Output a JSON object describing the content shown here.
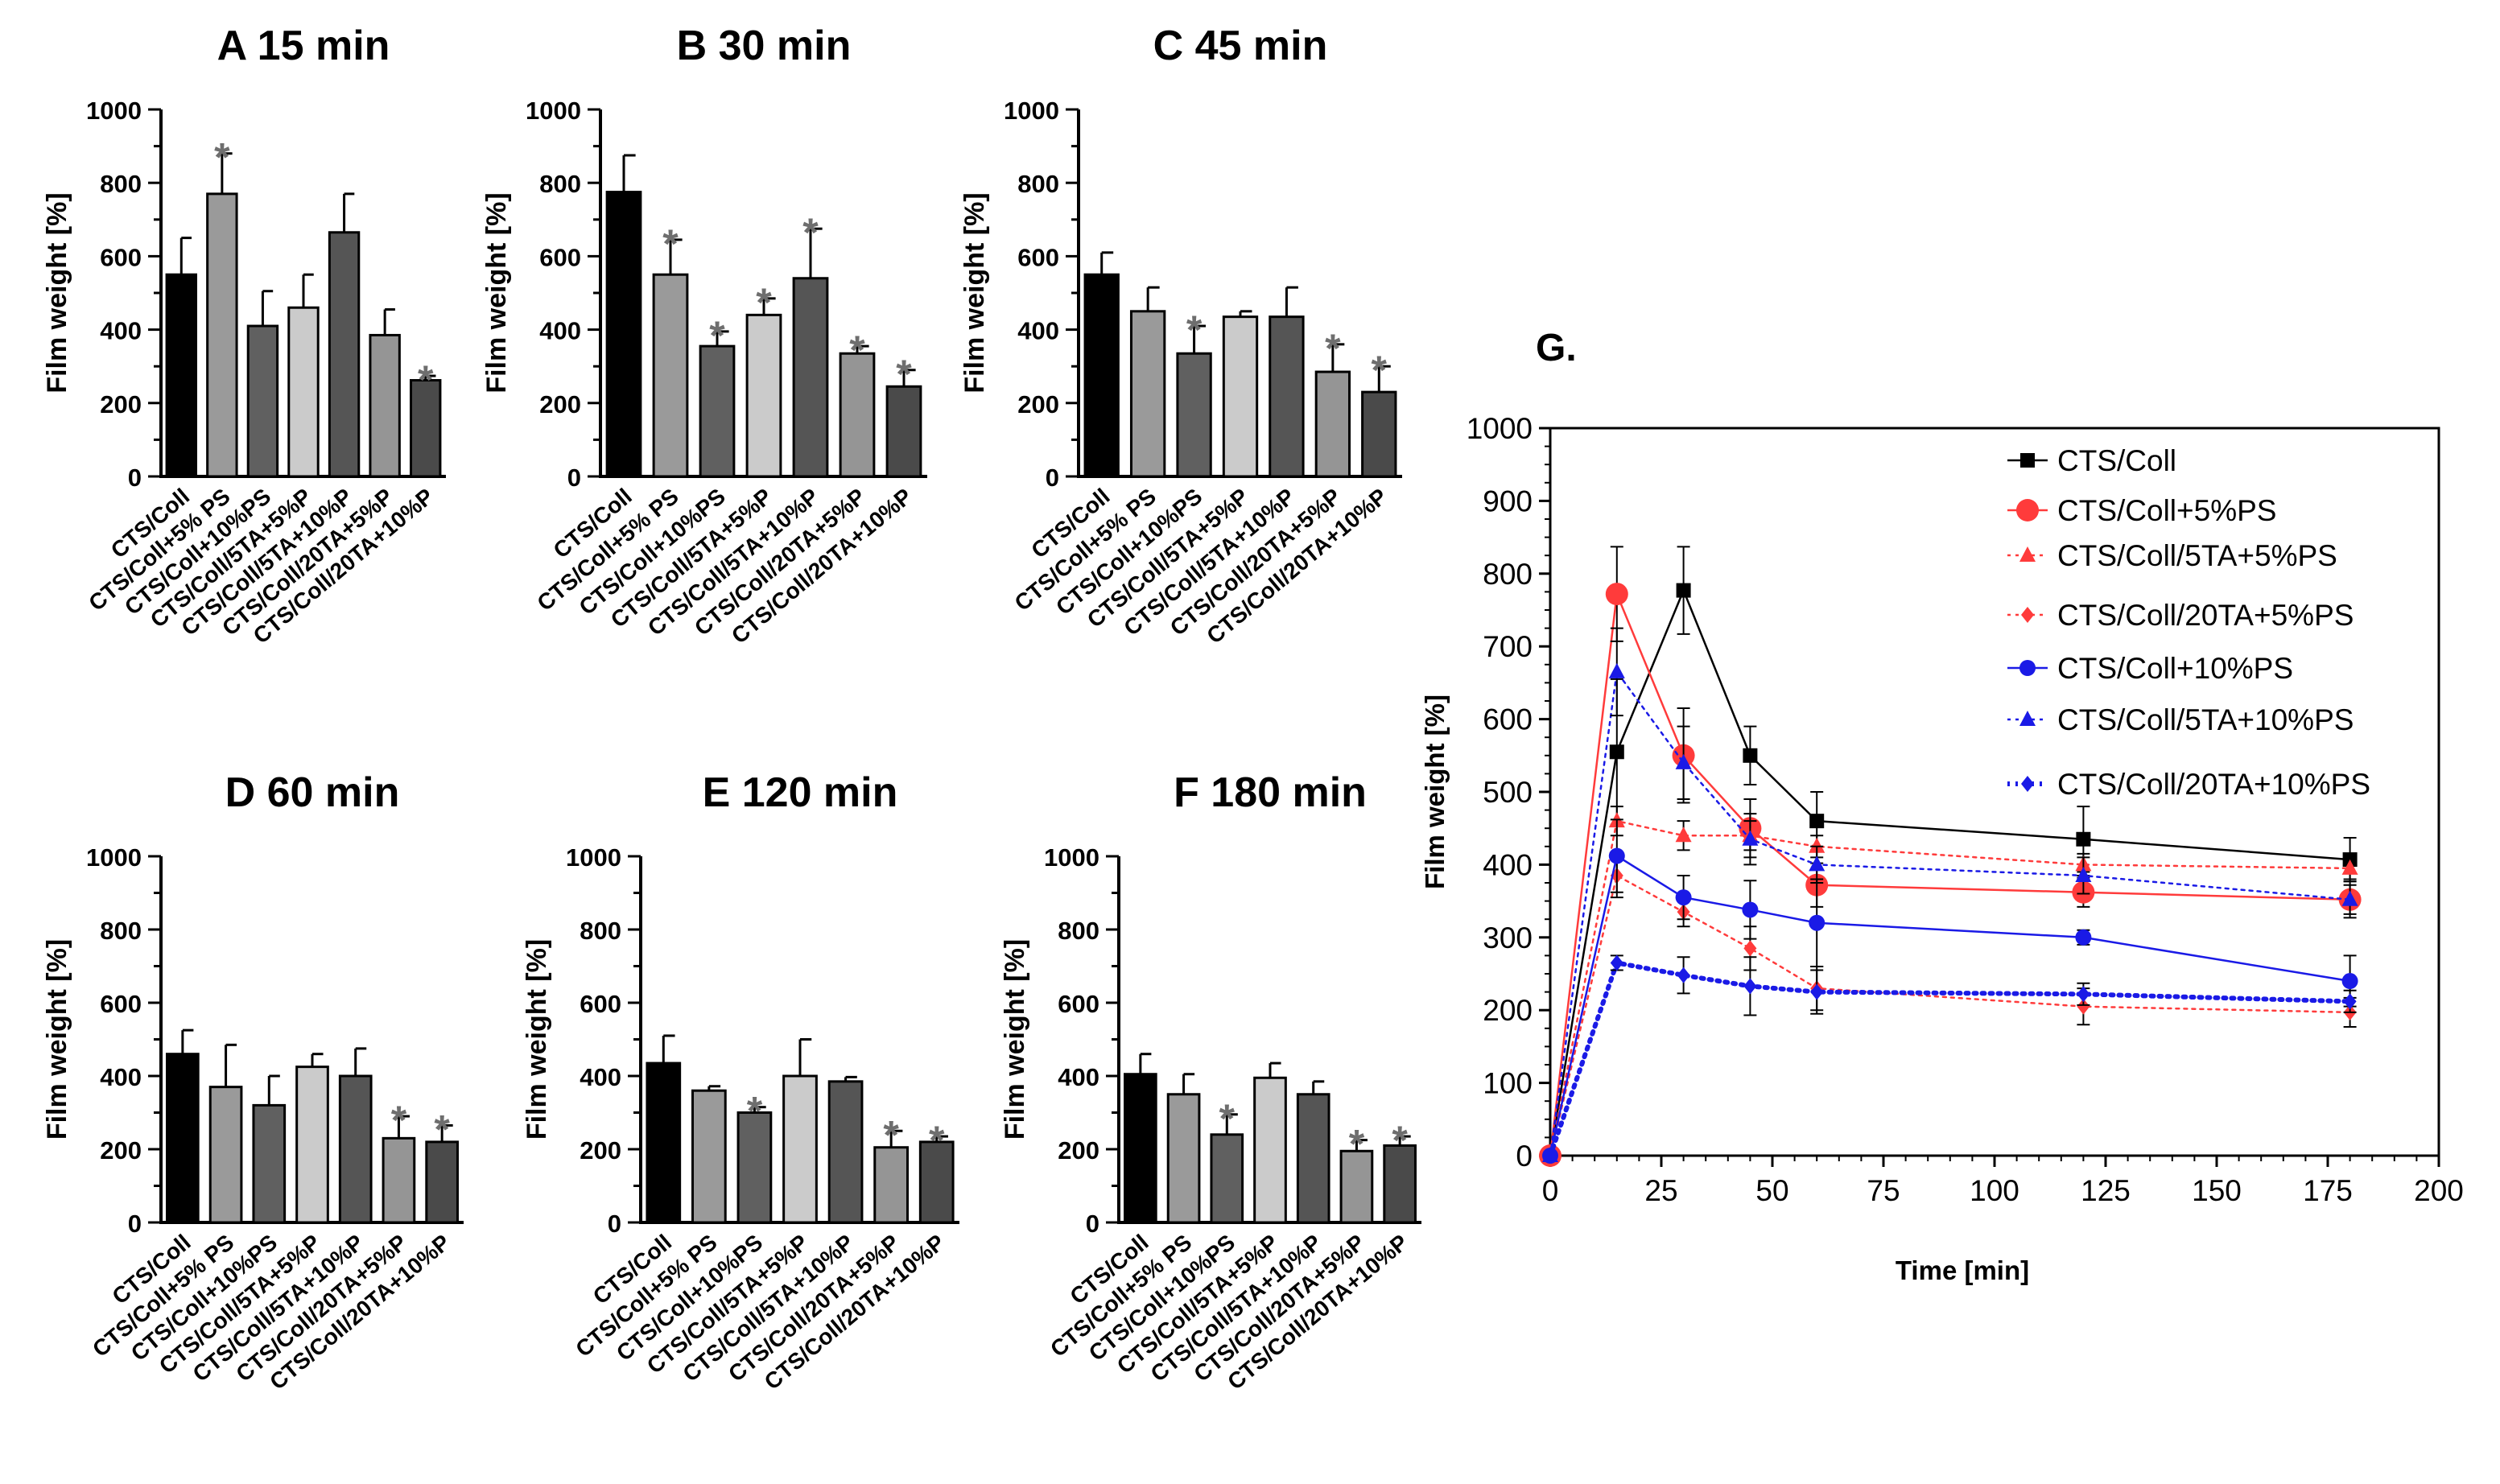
{
  "colors": {
    "axis": "#000000",
    "star": "#6e6e6e",
    "bar_fills": [
      "#000000",
      "#9a9a9a",
      "#606060",
      "#cbcbcb",
      "#555555",
      "#959595",
      "#4a4a4a"
    ],
    "black": "#000000",
    "red": "#ff3b3b",
    "blue": "#1a1ae6"
  },
  "chart_data": [
    {
      "type": "bar",
      "panel": "A",
      "title": "A 15 min",
      "ylabel": "Film weight [%]",
      "ylim": [
        0,
        1000
      ],
      "yticks": [
        "0",
        "200",
        "400",
        "600",
        "800",
        "1000"
      ],
      "categories": [
        "CTS/Coll",
        "CTS/Coll+5% PS",
        "CTS/Coll+10%PS",
        "CTS/Coll/5TA+5%P",
        "CTS/Coll/5TA+10%P",
        "CTS/Coll/20TA+5%P",
        "CTS/Coll/20TA+10%P"
      ],
      "values": [
        550,
        770,
        410,
        460,
        665,
        385,
        262
      ],
      "errors": [
        100,
        110,
        95,
        90,
        105,
        70,
        12
      ],
      "significance": [
        "",
        "*",
        "",
        "",
        "",
        "",
        "*"
      ]
    },
    {
      "type": "bar",
      "panel": "B",
      "title": "B 30 min",
      "ylabel": "Film weight [%]",
      "ylim": [
        0,
        1000
      ],
      "yticks": [
        "0",
        "200",
        "400",
        "600",
        "800",
        "1000"
      ],
      "categories": [
        "CTS/Coll",
        "CTS/Coll+5% PS",
        "CTS/Coll+10%PS",
        "CTS/Coll/5TA+5%P",
        "CTS/Coll/5TA+10%P",
        "CTS/Coll/20TA+5%P",
        "CTS/Coll/20TA+10%P"
      ],
      "values": [
        775,
        550,
        355,
        440,
        540,
        335,
        245
      ],
      "errors": [
        100,
        95,
        40,
        45,
        135,
        20,
        45
      ],
      "significance": [
        "",
        "*",
        "*",
        "*",
        "*",
        "*",
        "*"
      ]
    },
    {
      "type": "bar",
      "panel": "C",
      "title": "C 45 min",
      "ylabel": "Film weight [%]",
      "ylim": [
        0,
        1000
      ],
      "yticks": [
        "0",
        "200",
        "400",
        "600",
        "800",
        "1000"
      ],
      "categories": [
        "CTS/Coll",
        "CTS/Coll+5% PS",
        "CTS/Coll+10%PS",
        "CTS/Coll/5TA+5%P",
        "CTS/Coll/5TA+10%P",
        "CTS/Coll/20TA+5%P",
        "CTS/Coll/20TA+10%P"
      ],
      "values": [
        550,
        450,
        335,
        435,
        435,
        285,
        230
      ],
      "errors": [
        60,
        65,
        75,
        15,
        80,
        75,
        70
      ],
      "significance": [
        "",
        "",
        "*",
        "",
        "",
        "*",
        "*"
      ]
    },
    {
      "type": "bar",
      "panel": "D",
      "title": "D 60 min",
      "ylabel": "Film weight [%]",
      "ylim": [
        0,
        1000
      ],
      "yticks": [
        "0",
        "200",
        "400",
        "600",
        "800",
        "1000"
      ],
      "categories": [
        "CTS/Coll",
        "CTS/Coll+5% PS",
        "CTS/Coll+10%PS",
        "CTS/Coll/5TA+5%P",
        "CTS/Coll/5TA+10%P",
        "CTS/Coll/20TA+5%P",
        "CTS/Coll/20TA+10%P"
      ],
      "values": [
        460,
        370,
        320,
        425,
        400,
        230,
        220
      ],
      "errors": [
        65,
        115,
        80,
        35,
        75,
        60,
        45
      ],
      "significance": [
        "",
        "",
        "",
        "",
        "",
        "*",
        "*"
      ]
    },
    {
      "type": "bar",
      "panel": "E",
      "title": "E 120 min",
      "ylabel": "Film weight [%]",
      "ylim": [
        0,
        1000
      ],
      "yticks": [
        "0",
        "200",
        "400",
        "600",
        "800",
        "1000"
      ],
      "categories": [
        "CTS/Coll",
        "CTS/Coll+5% PS",
        "CTS/Coll+10%PS",
        "CTS/Coll/5TA+5%P",
        "CTS/Coll/5TA+10%P",
        "CTS/Coll/20TA+5%P",
        "CTS/Coll/20TA+10%P"
      ],
      "values": [
        435,
        360,
        300,
        400,
        385,
        205,
        220
      ],
      "errors": [
        75,
        12,
        15,
        100,
        12,
        45,
        15
      ],
      "significance": [
        "",
        "",
        "*",
        "",
        "",
        "*",
        "*"
      ]
    },
    {
      "type": "bar",
      "panel": "F",
      "title": "F 180 min",
      "ylabel": "Film weight [%]",
      "ylim": [
        0,
        1000
      ],
      "yticks": [
        "0",
        "200",
        "400",
        "600",
        "800",
        "1000"
      ],
      "categories": [
        "CTS/Coll",
        "CTS/Coll+5% PS",
        "CTS/Coll+10%PS",
        "CTS/Coll/5TA+5%P",
        "CTS/Coll/5TA+10%P",
        "CTS/Coll/20TA+5%P",
        "CTS/Coll/20TA+10%P"
      ],
      "values": [
        405,
        350,
        240,
        395,
        350,
        195,
        210
      ],
      "errors": [
        55,
        55,
        55,
        40,
        35,
        30,
        25
      ],
      "significance": [
        "",
        "",
        "*",
        "",
        "",
        "*",
        "*"
      ]
    },
    {
      "type": "line",
      "panel": "G",
      "title": "G.",
      "xlabel": "Time [min]",
      "ylabel": "Film weight [%]",
      "xlim": [
        0,
        200
      ],
      "ylim": [
        0,
        1000
      ],
      "xticks": [
        "0",
        "25",
        "50",
        "75",
        "100",
        "125",
        "150",
        "175",
        "200"
      ],
      "yticks": [
        "0",
        "100",
        "200",
        "300",
        "400",
        "500",
        "600",
        "700",
        "800",
        "900",
        "1000"
      ],
      "x": [
        0,
        15,
        30,
        45,
        60,
        120,
        180
      ],
      "series": [
        {
          "name": "CTS/Coll",
          "color": "black",
          "marker": "square",
          "dash": "solid",
          "values": [
            0,
            555,
            777,
            550,
            460,
            435,
            407
          ],
          "errors": [
            0,
            100,
            60,
            40,
            40,
            45,
            30
          ]
        },
        {
          "name": "CTS/Coll+5%PS",
          "color": "red",
          "marker": "circle-large",
          "dash": "solid",
          "values": [
            0,
            772,
            550,
            450,
            372,
            362,
            352
          ],
          "errors": [
            0,
            65,
            65,
            40,
            30,
            20,
            25
          ]
        },
        {
          "name": "CTS/Coll/5TA+5%PS",
          "color": "red",
          "marker": "triangle",
          "dash": "dotted",
          "values": [
            0,
            460,
            440,
            440,
            425,
            400,
            395
          ],
          "errors": [
            0,
            20,
            20,
            20,
            15,
            15,
            15
          ]
        },
        {
          "name": "CTS/Coll/20TA+5%PS",
          "color": "red",
          "marker": "diamond",
          "dash": "dotted",
          "values": [
            0,
            385,
            335,
            285,
            230,
            205,
            197
          ],
          "errors": [
            0,
            30,
            20,
            30,
            30,
            25,
            20
          ]
        },
        {
          "name": "CTS/Coll+10%PS",
          "color": "blue",
          "marker": "circle",
          "dash": "solid",
          "values": [
            0,
            412,
            355,
            338,
            320,
            300,
            240
          ],
          "errors": [
            0,
            50,
            30,
            40,
            60,
            10,
            35
          ]
        },
        {
          "name": "CTS/Coll/5TA+10%PS",
          "color": "blue",
          "marker": "triangle",
          "dash": "dotted",
          "values": [
            0,
            665,
            540,
            435,
            400,
            385,
            352
          ],
          "errors": [
            0,
            60,
            50,
            35,
            25,
            25,
            20
          ]
        },
        {
          "name": "CTS/Coll/20TA+10%PS",
          "color": "blue",
          "marker": "diamond",
          "dash": "dotted-thick",
          "values": [
            0,
            265,
            248,
            233,
            225,
            222,
            212
          ],
          "errors": [
            0,
            10,
            25,
            40,
            30,
            15,
            15
          ]
        }
      ]
    }
  ]
}
